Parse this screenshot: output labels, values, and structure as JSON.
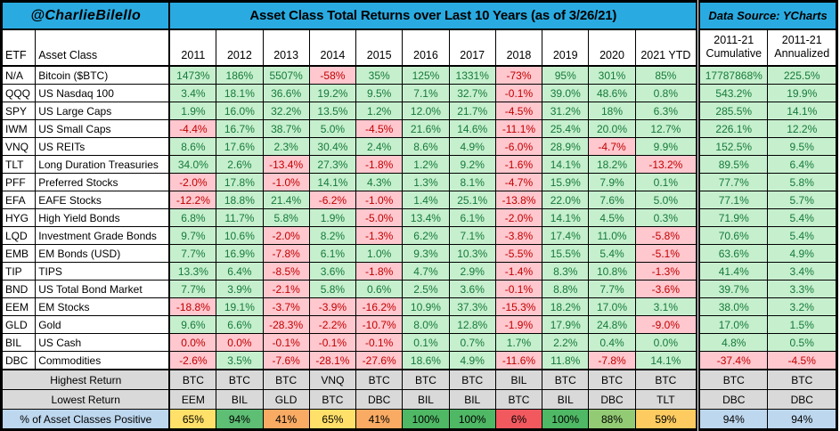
{
  "chart_data": {
    "type": "table",
    "byline": "@CharlieBilello",
    "title": "Asset Class Total Returns over Last 10 Years (as of 3/26/21)",
    "source": "Data Source: YCharts",
    "columns": {
      "etf": "ETF",
      "asset_class": "Asset Class",
      "years": [
        "2011",
        "2012",
        "2013",
        "2014",
        "2015",
        "2016",
        "2017",
        "2018",
        "2019",
        "2020",
        "2021 YTD"
      ],
      "cumulative": "2011-21 Cumulative",
      "annualized": "2011-21 Annualized"
    },
    "rows": [
      {
        "etf": "N/A",
        "asset": "Bitcoin ($BTC)",
        "values": [
          "1473%",
          "186%",
          "5507%",
          "-58%",
          "35%",
          "125%",
          "1331%",
          "-73%",
          "95%",
          "301%",
          "85%"
        ],
        "cumulative": "17787868%",
        "annualized": "225.5%",
        "flags": "gggrgggrggggg"
      },
      {
        "etf": "QQQ",
        "asset": "US Nasdaq 100",
        "values": [
          "3.4%",
          "18.1%",
          "36.6%",
          "19.2%",
          "9.5%",
          "7.1%",
          "32.7%",
          "-0.1%",
          "39.0%",
          "48.6%",
          "0.8%"
        ],
        "cumulative": "543.2%",
        "annualized": "19.9%",
        "flags": "gggggggrggggg"
      },
      {
        "etf": "SPY",
        "asset": "US Large Caps",
        "values": [
          "1.9%",
          "16.0%",
          "32.2%",
          "13.5%",
          "1.2%",
          "12.0%",
          "21.7%",
          "-4.5%",
          "31.2%",
          "18%",
          "6.3%"
        ],
        "cumulative": "285.5%",
        "annualized": "14.1%",
        "flags": "gggggggrggggg"
      },
      {
        "etf": "IWM",
        "asset": "US Small Caps",
        "values": [
          "-4.4%",
          "16.7%",
          "38.7%",
          "5.0%",
          "-4.5%",
          "21.6%",
          "14.6%",
          "-11.1%",
          "25.4%",
          "20.0%",
          "12.7%"
        ],
        "cumulative": "226.1%",
        "annualized": "12.2%",
        "flags": "rgggrggrggggg"
      },
      {
        "etf": "VNQ",
        "asset": "US REITs",
        "values": [
          "8.6%",
          "17.6%",
          "2.3%",
          "30.4%",
          "2.4%",
          "8.6%",
          "4.9%",
          "-6.0%",
          "28.9%",
          "-4.7%",
          "9.9%"
        ],
        "cumulative": "152.5%",
        "annualized": "9.5%",
        "flags": "gggggggrgrggg"
      },
      {
        "etf": "TLT",
        "asset": "Long Duration Treasuries",
        "values": [
          "34.0%",
          "2.6%",
          "-13.4%",
          "27.3%",
          "-1.8%",
          "1.2%",
          "9.2%",
          "-1.6%",
          "14.1%",
          "18.2%",
          "-13.2%"
        ],
        "cumulative": "89.5%",
        "annualized": "6.4%",
        "flags": "ggrgrggrggrgg"
      },
      {
        "etf": "PFF",
        "asset": "Preferred Stocks",
        "values": [
          "-2.0%",
          "17.8%",
          "-1.0%",
          "14.1%",
          "4.3%",
          "1.3%",
          "8.1%",
          "-4.7%",
          "15.9%",
          "7.9%",
          "0.1%"
        ],
        "cumulative": "77.7%",
        "annualized": "5.8%",
        "flags": "rgrggggrggggg"
      },
      {
        "etf": "EFA",
        "asset": "EAFE Stocks",
        "values": [
          "-12.2%",
          "18.8%",
          "21.4%",
          "-6.2%",
          "-1.0%",
          "1.4%",
          "25.1%",
          "-13.8%",
          "22.0%",
          "7.6%",
          "5.0%"
        ],
        "cumulative": "77.1%",
        "annualized": "5.7%",
        "flags": "rggrrggrggggg"
      },
      {
        "etf": "HYG",
        "asset": "High Yield Bonds",
        "values": [
          "6.8%",
          "11.7%",
          "5.8%",
          "1.9%",
          "-5.0%",
          "13.4%",
          "6.1%",
          "-2.0%",
          "14.1%",
          "4.5%",
          "0.3%"
        ],
        "cumulative": "71.9%",
        "annualized": "5.4%",
        "flags": "ggggrggrggggg"
      },
      {
        "etf": "LQD",
        "asset": "Investment Grade Bonds",
        "values": [
          "9.7%",
          "10.6%",
          "-2.0%",
          "8.2%",
          "-1.3%",
          "6.2%",
          "7.1%",
          "-3.8%",
          "17.4%",
          "11.0%",
          "-5.8%"
        ],
        "cumulative": "70.6%",
        "annualized": "5.4%",
        "flags": "ggrgrggrggrgg"
      },
      {
        "etf": "EMB",
        "asset": "EM Bonds (USD)",
        "values": [
          "7.7%",
          "16.9%",
          "-7.8%",
          "6.1%",
          "1.0%",
          "9.3%",
          "10.3%",
          "-5.5%",
          "15.5%",
          "5.4%",
          "-5.1%"
        ],
        "cumulative": "63.6%",
        "annualized": "4.9%",
        "flags": "ggrggggrggrgg"
      },
      {
        "etf": "TIP",
        "asset": "TIPS",
        "values": [
          "13.3%",
          "6.4%",
          "-8.5%",
          "3.6%",
          "-1.8%",
          "4.7%",
          "2.9%",
          "-1.4%",
          "8.3%",
          "10.8%",
          "-1.3%"
        ],
        "cumulative": "41.4%",
        "annualized": "3.4%",
        "flags": "ggrgrggrggrgg"
      },
      {
        "etf": "BND",
        "asset": "US Total Bond Market",
        "values": [
          "7.7%",
          "3.9%",
          "-2.1%",
          "5.8%",
          "0.6%",
          "2.5%",
          "3.6%",
          "-0.1%",
          "8.8%",
          "7.7%",
          "-3.6%"
        ],
        "cumulative": "39.7%",
        "annualized": "3.3%",
        "flags": "ggrggggrggrgg"
      },
      {
        "etf": "EEM",
        "asset": "EM Stocks",
        "values": [
          "-18.8%",
          "19.1%",
          "-3.7%",
          "-3.9%",
          "-16.2%",
          "10.9%",
          "37.3%",
          "-15.3%",
          "18.2%",
          "17.0%",
          "3.1%"
        ],
        "cumulative": "38.0%",
        "annualized": "3.2%",
        "flags": "rgrrrggrggggg"
      },
      {
        "etf": "GLD",
        "asset": "Gold",
        "values": [
          "9.6%",
          "6.6%",
          "-28.3%",
          "-2.2%",
          "-10.7%",
          "8.0%",
          "12.8%",
          "-1.9%",
          "17.9%",
          "24.8%",
          "-9.0%"
        ],
        "cumulative": "17.0%",
        "annualized": "1.5%",
        "flags": "ggrrrggrggrgg"
      },
      {
        "etf": "BIL",
        "asset": "US Cash",
        "values": [
          "0.0%",
          "0.0%",
          "-0.1%",
          "-0.1%",
          "-0.1%",
          "0.1%",
          "0.7%",
          "1.7%",
          "2.2%",
          "0.4%",
          "0.0%"
        ],
        "cumulative": "4.8%",
        "annualized": "0.5%",
        "flags": "rrrrrgggggggg"
      },
      {
        "etf": "DBC",
        "asset": "Commodities",
        "values": [
          "-2.6%",
          "3.5%",
          "-7.6%",
          "-28.1%",
          "-27.6%",
          "18.6%",
          "4.9%",
          "-11.6%",
          "11.8%",
          "-7.8%",
          "14.1%"
        ],
        "cumulative": "-37.4%",
        "annualized": "-4.5%",
        "flags": "rgrrrggrgrgrr"
      }
    ],
    "summary": {
      "highest": {
        "label": "Highest Return",
        "values": [
          "BTC",
          "BTC",
          "BTC",
          "VNQ",
          "BTC",
          "BTC",
          "BTC",
          "BIL",
          "BTC",
          "BTC",
          "BTC",
          "BTC",
          "BTC"
        ]
      },
      "lowest": {
        "label": "Lowest Return",
        "values": [
          "EEM",
          "BIL",
          "GLD",
          "BTC",
          "DBC",
          "BIL",
          "BIL",
          "BTC",
          "BIL",
          "DBC",
          "TLT",
          "DBC",
          "DBC"
        ]
      },
      "positive": {
        "label": "% of Asset Classes Positive",
        "values": [
          "65%",
          "94%",
          "41%",
          "65%",
          "41%",
          "100%",
          "100%",
          "6%",
          "100%",
          "88%",
          "59%",
          "94%",
          "94%"
        ],
        "colors": [
          "#ffe169",
          "#5dbe74",
          "#f9ab63",
          "#ffe169",
          "#f9ab63",
          "#4fb865",
          "#4fb865",
          "#f1595f",
          "#4fb865",
          "#92cb74",
          "#fdcb5f",
          "#bdd7ee",
          "#bdd7ee"
        ]
      }
    },
    "colors": {
      "header_blue": "#29abe2",
      "header_gray": "#bfbfbf",
      "positive_bg": "#c6efce",
      "positive_text": "#157a38",
      "negative_bg": "#ffc7ce",
      "negative_text": "#c00000",
      "summary_gray": "#d9d9d9",
      "label_blue": "#bdd7ee"
    }
  }
}
